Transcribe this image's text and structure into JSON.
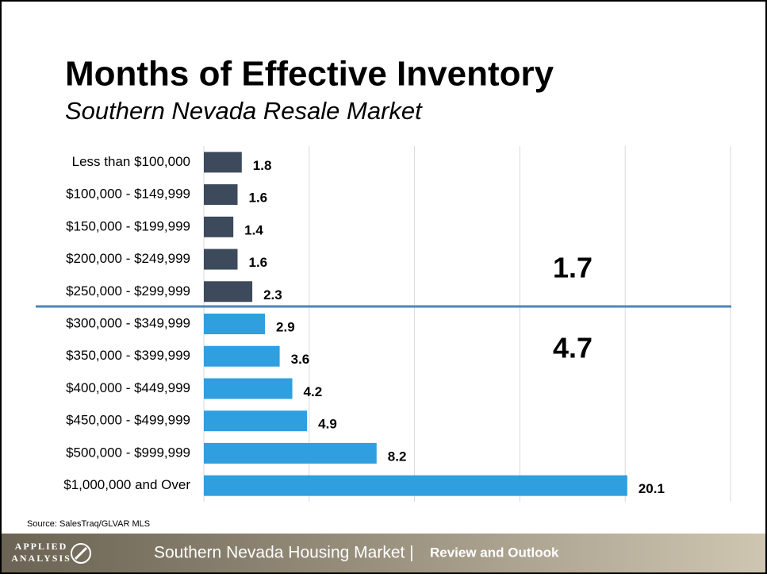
{
  "chart_data": {
    "type": "barh",
    "title": "Months of Effective Inventory",
    "subtitle": "Southern Nevada Resale Market",
    "categories": [
      "Less than $100,000",
      "$100,000 - $149,999",
      "$150,000 - $199,999",
      "$200,000 - $249,999",
      "$250,000 - $299,999",
      "$300,000 - $349,999",
      "$350,000 - $399,999",
      "$400,000 - $449,999",
      "$450,000 - $499,999",
      "$500,000 - $999,999",
      "$1,000,000 and Over"
    ],
    "values": [
      1.8,
      1.6,
      1.4,
      1.6,
      2.3,
      2.9,
      3.6,
      4.2,
      4.9,
      8.2,
      20.1
    ],
    "colors": [
      "#3d4a5c",
      "#3d4a5c",
      "#3d4a5c",
      "#3d4a5c",
      "#3d4a5c",
      "#2f9fe0",
      "#2f9fe0",
      "#2f9fe0",
      "#2f9fe0",
      "#2f9fe0",
      "#2f9fe0"
    ],
    "xlim": [
      0,
      25
    ],
    "xticks": [
      0,
      5,
      10,
      15,
      20,
      25
    ],
    "grid": true,
    "annotations": [
      "1.7",
      "4.7"
    ]
  },
  "source": "Source: SalesTraq/GLVAR MLS",
  "footer": {
    "logo_lines": [
      "APPLIED",
      "ANALYSIS"
    ],
    "title": "Southern Nevada Housing Market |",
    "subtitle": "Review and Outlook"
  }
}
